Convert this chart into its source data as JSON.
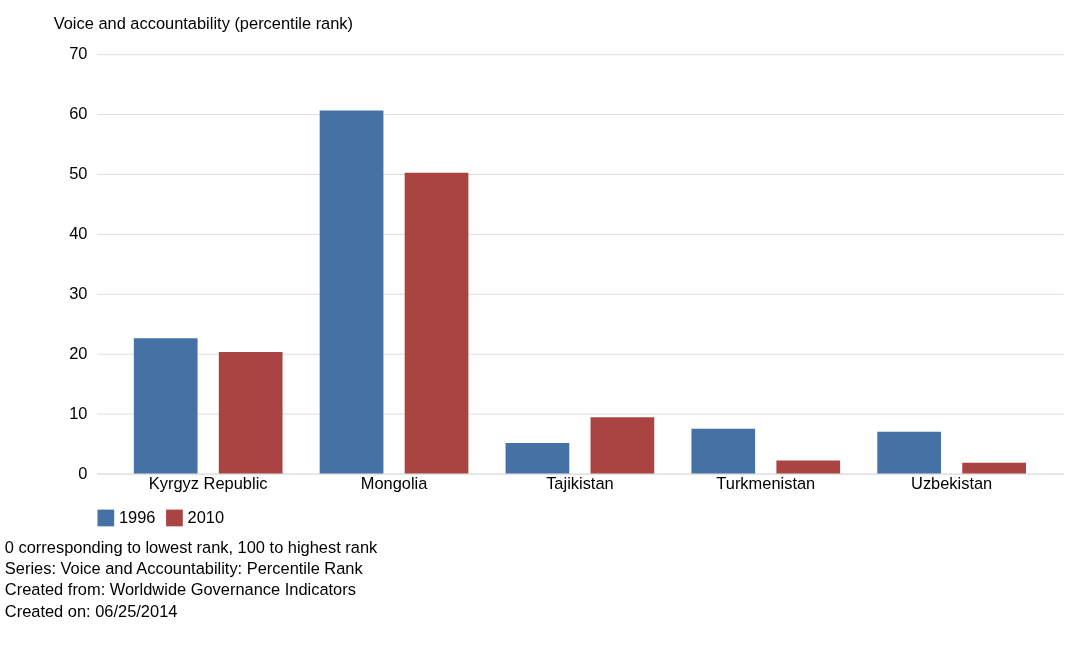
{
  "chart_data": {
    "type": "bar",
    "ylabel": "Voice and accountability (percentile rank)",
    "categories": [
      "Kyrgyz Republic",
      "Mongolia",
      "Tajikistan",
      "Turkmenistan",
      "Uzbekistan"
    ],
    "series": [
      {
        "name": "1996",
        "color": "#4671a5",
        "values": [
          22.6,
          60.6,
          5.1,
          7.5,
          7.0
        ]
      },
      {
        "name": "2010",
        "color": "#a94442",
        "values": [
          20.3,
          50.2,
          9.4,
          2.2,
          1.8
        ]
      }
    ],
    "ylim": [
      0,
      70
    ],
    "yticks": [
      0,
      10,
      20,
      30,
      40,
      50,
      60,
      70
    ],
    "grid": "y",
    "legend": "bottom",
    "annotations": [
      "0 corresponding to lowest rank, 100 to highest rank",
      "Series: Voice and Accountability: Percentile Rank",
      "Created from: Worldwide Governance Indicators",
      "Created on: 06/25/2014"
    ]
  }
}
